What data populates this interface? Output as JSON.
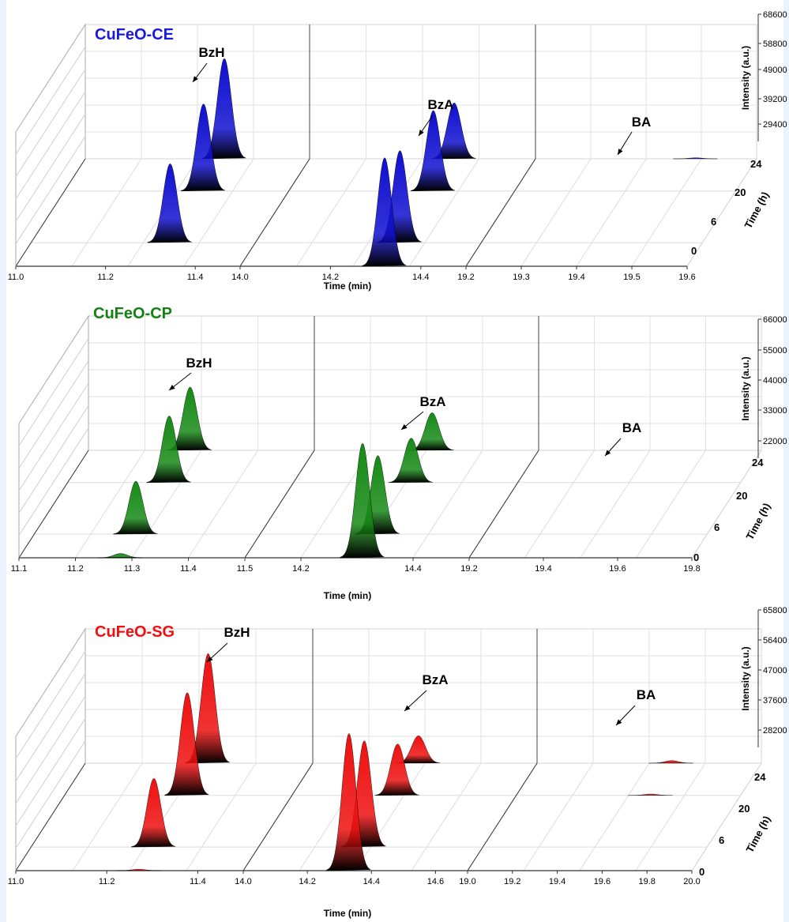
{
  "chart_data": [
    {
      "type": "3d-chromatogram",
      "title": "CuFeO-CE",
      "title_color": "#1a1adc",
      "peak_color": "#1010d0",
      "x_title": "Time (min)",
      "z_title": "Intensity (a.u.)",
      "t_title": "Time (h)",
      "segments": [
        {
          "ticks": [
            "11.0",
            "11.2",
            "11.4"
          ],
          "range": [
            11.0,
            11.5
          ]
        },
        {
          "ticks": [
            "14.0",
            "14.2",
            "14.4"
          ],
          "range": [
            14.0,
            14.5
          ]
        },
        {
          "ticks": [
            "19.2",
            "19.3",
            "19.4",
            "19.5",
            "19.6"
          ],
          "range": [
            19.2,
            19.6
          ]
        }
      ],
      "z_ticks": [
        "68600",
        "58800",
        "49000",
        "39200",
        "29400"
      ],
      "t_ticks": [
        "0",
        "6",
        "20",
        "24"
      ],
      "peaks": [
        {
          "label": "BzH",
          "segment": 0,
          "time_min": 11.31,
          "intensity_by_time_h": [
            0,
            48000,
            53000,
            61000
          ]
        },
        {
          "label": "BzA",
          "segment": 1,
          "time_min": 14.32,
          "intensity_by_time_h": [
            66000,
            56000,
            49000,
            34000
          ]
        },
        {
          "label": "BA",
          "segment": 2,
          "time_min": 19.49,
          "intensity_by_time_h": [
            0,
            0,
            0,
            600
          ]
        }
      ]
    },
    {
      "type": "3d-chromatogram",
      "title": "CuFeO-CP",
      "title_color": "#158015",
      "peak_color": "#168a16",
      "x_title": "Time (min)",
      "z_title": "Intensity (a.u.)",
      "t_title": "Time (h)",
      "segments": [
        {
          "ticks": [
            "11.1",
            "11.2",
            "11.3",
            "11.4",
            "11.5"
          ],
          "range": [
            11.1,
            11.5
          ]
        },
        {
          "ticks": [
            "14.2",
            "14.4"
          ],
          "range": [
            14.1,
            14.5
          ]
        },
        {
          "ticks": [
            "19.2",
            "19.4",
            "19.6",
            "19.8"
          ],
          "range": [
            19.2,
            19.8
          ]
        }
      ],
      "z_ticks": [
        "66000",
        "55000",
        "44000",
        "33000",
        "22000"
      ],
      "t_ticks": [
        "0",
        "6",
        "20",
        "24"
      ],
      "peaks": [
        {
          "label": "BzH",
          "segment": 0,
          "time_min": 11.28,
          "intensity_by_time_h": [
            2500,
            31000,
            39000,
            37000
          ]
        },
        {
          "label": "BzA",
          "segment": 1,
          "time_min": 14.31,
          "intensity_by_time_h": [
            67000,
            46000,
            26000,
            22000
          ]
        },
        {
          "label": "BA",
          "segment": 2,
          "time_min": 19.6,
          "intensity_by_time_h": [
            0,
            0,
            0,
            0
          ]
        }
      ]
    },
    {
      "type": "3d-chromatogram",
      "title": "CuFeO-SG",
      "title_color": "#ee1010",
      "peak_color": "#ee1010",
      "x_title": "Time (min)",
      "z_title": "Intensity (a.u.)",
      "t_title": "Time (h)",
      "segments": [
        {
          "ticks": [
            "11.0",
            "11.2",
            "11.4"
          ],
          "range": [
            11.0,
            11.5
          ]
        },
        {
          "ticks": [
            "14.0",
            "14.2",
            "14.4",
            "14.6"
          ],
          "range": [
            14.0,
            14.7
          ]
        },
        {
          "ticks": [
            "19.0",
            "19.2",
            "19.4",
            "19.6",
            "19.8",
            "20.0"
          ],
          "range": [
            19.0,
            20.0
          ]
        }
      ],
      "z_ticks": [
        "65800",
        "56400",
        "47000",
        "37600",
        "28200"
      ],
      "t_ticks": [
        "0",
        "6",
        "20",
        "24"
      ],
      "peaks": [
        {
          "label": "BzH",
          "segment": 0,
          "time_min": 11.27,
          "intensity_by_time_h": [
            800,
            40000,
            60000,
            64000
          ]
        },
        {
          "label": "BzA",
          "segment": 1,
          "time_min": 14.33,
          "intensity_by_time_h": [
            80000,
            62000,
            30000,
            16000
          ]
        },
        {
          "label": "BA",
          "segment": 2,
          "time_min": 19.6,
          "intensity_by_time_h": [
            0,
            0,
            800,
            1500
          ]
        }
      ]
    }
  ]
}
